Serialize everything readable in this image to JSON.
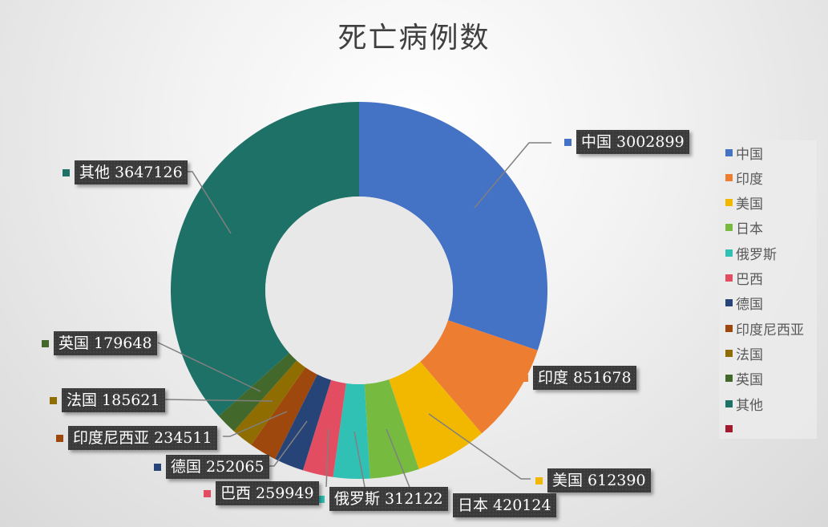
{
  "chart_data": {
    "type": "pie",
    "subtype": "doughnut",
    "title": "死亡病例数",
    "categories": [
      "中国",
      "印度",
      "美国",
      "日本",
      "俄罗斯",
      "巴西",
      "德国",
      "印度尼西亚",
      "法国",
      "英国",
      "其他"
    ],
    "values": [
      3002899,
      851678,
      612390,
      420124,
      312122,
      259949,
      252065,
      234511,
      185621,
      179648,
      3647126
    ],
    "colors": [
      "#4472c4",
      "#ed7d31",
      "#f2b800",
      "#76bb40",
      "#31c0b4",
      "#e34d62",
      "#264478",
      "#9e480e",
      "#8f6d00",
      "#43682b",
      "#1e7166"
    ],
    "legend": {
      "position": "right",
      "entries": [
        "中国",
        "印度",
        "美国",
        "日本",
        "俄罗斯",
        "巴西",
        "德国",
        "印度尼西亚",
        "法国",
        "英国",
        "其他",
        ""
      ],
      "extra_swatch_color": "#a31a2e"
    },
    "data_labels": [
      "中国 3002899",
      "印度 851678",
      "美国 612390",
      "日本 420124",
      "俄罗斯 312122",
      "巴西 259949",
      "德国 252065",
      "印度尼西亚 234511",
      "法国 185621",
      "英国 179648",
      "其他 3647126"
    ]
  }
}
